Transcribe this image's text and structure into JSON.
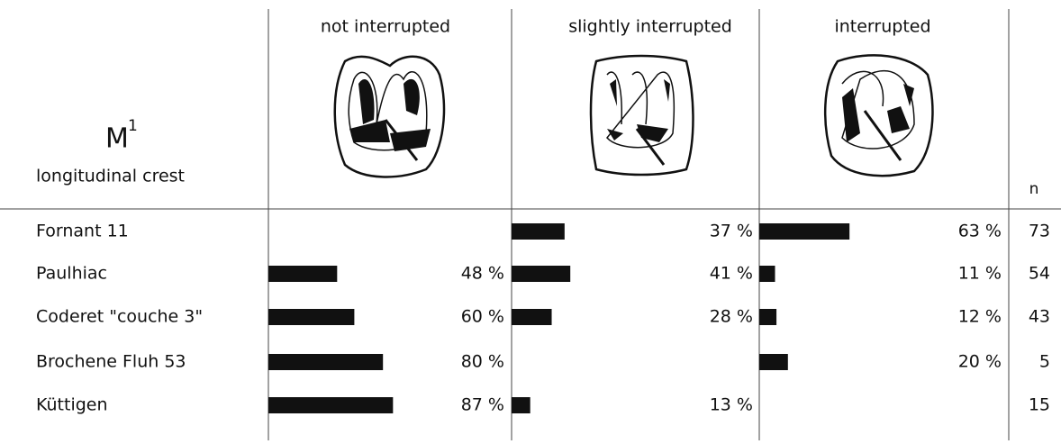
{
  "header": {
    "title": "M",
    "superscript": "1",
    "subtitle": "longitudinal crest",
    "columns": [
      "not interrupted",
      "slightly interrupted",
      "interrupted"
    ],
    "n_label": "n"
  },
  "rows": [
    {
      "site": "Fornant 11",
      "values": [
        null,
        37,
        63
      ],
      "value_labels": [
        null,
        "37 %",
        "63 %"
      ],
      "n": 73
    },
    {
      "site": "Paulhiac",
      "values": [
        48,
        41,
        11
      ],
      "value_labels": [
        "48 %",
        "41 %",
        "11 %"
      ],
      "n": 54
    },
    {
      "site": "Coderet \"couche 3\"",
      "values": [
        60,
        28,
        12
      ],
      "value_labels": [
        "60 %",
        "28 %",
        "12 %"
      ],
      "n": 43
    },
    {
      "site": "Brochene Fluh 53",
      "values": [
        80,
        null,
        20
      ],
      "value_labels": [
        "80 %",
        null,
        "20 %"
      ],
      "n": 5
    },
    {
      "site": "Küttigen",
      "values": [
        87,
        13,
        null
      ],
      "value_labels": [
        "87 %",
        "13 %",
        null
      ],
      "n": 15
    }
  ]
}
